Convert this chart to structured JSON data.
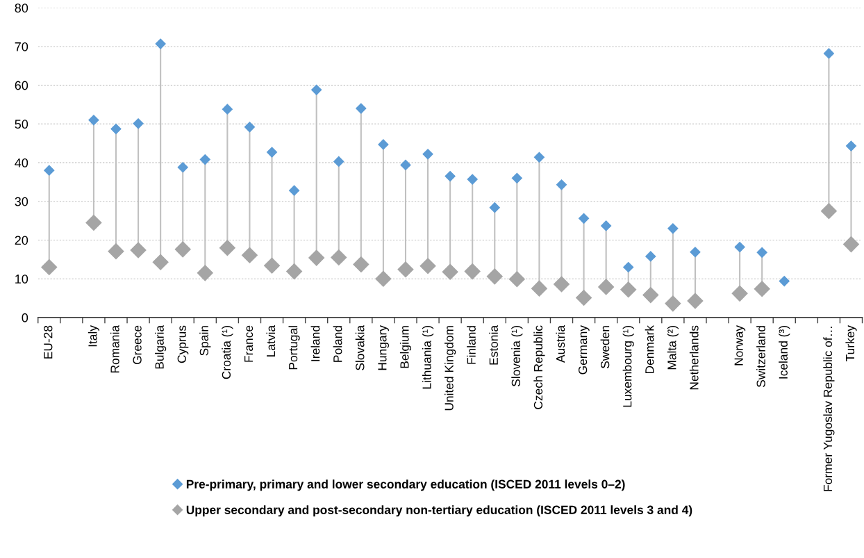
{
  "chart_data": {
    "type": "scatter",
    "categories": [
      "EU-28",
      null,
      "Italy",
      "Romania",
      "Greece",
      "Bulgaria",
      "Cyprus",
      "Spain",
      "Croatia (¹)",
      "France",
      "Latvia",
      "Portugal",
      "Ireland",
      "Poland",
      "Slovakia",
      "Hungary",
      "Belgium",
      "Lithuania (¹)",
      "United Kingdom",
      "Finland",
      "Estonia",
      "Slovenia (¹)",
      "Czech Republic",
      "Austria",
      "Germany",
      "Sweden",
      "Luxembourg (¹)",
      "Denmark",
      "Malta (²)",
      "Netherlands",
      null,
      "Norway",
      "Switzerland",
      "Iceland (³)",
      null,
      "Former Yugoslav Republic of…",
      "Turkey"
    ],
    "series": [
      {
        "name": "Pre-primary, primary and lower secondary education (ISCED 2011 levels 0–2)",
        "color": "#5b9bd5",
        "values": [
          38,
          null,
          51,
          48.7,
          50.1,
          70.7,
          38.8,
          40.8,
          53.8,
          49.2,
          42.7,
          32.8,
          58.8,
          40.3,
          54.0,
          44.7,
          39.4,
          42.2,
          36.5,
          35.7,
          28.4,
          36.0,
          41.4,
          34.3,
          25.6,
          23.7,
          13.0,
          15.8,
          23.0,
          16.9,
          null,
          18.2,
          16.8,
          9.4,
          null,
          68.2,
          44.3
        ]
      },
      {
        "name": "Upper secondary and post-secondary non-tertiary education (ISCED 2011 levels 3 and 4)",
        "color": "#a5a5a5",
        "values": [
          13.0,
          null,
          24.5,
          17.1,
          17.4,
          14.3,
          17.6,
          11.5,
          18.0,
          16.1,
          13.4,
          11.9,
          15.4,
          15.5,
          13.7,
          10.0,
          12.4,
          13.3,
          11.8,
          11.9,
          10.6,
          9.9,
          7.5,
          8.6,
          5.1,
          7.9,
          7.2,
          5.8,
          3.6,
          4.3,
          null,
          6.2,
          7.4,
          null,
          null,
          27.5,
          18.9
        ]
      }
    ],
    "ylim": [
      0,
      80
    ],
    "yticks": [
      0,
      10,
      20,
      30,
      40,
      50,
      60,
      70,
      80
    ],
    "grid": "y",
    "legend": "bottom",
    "marker": "diamond"
  }
}
